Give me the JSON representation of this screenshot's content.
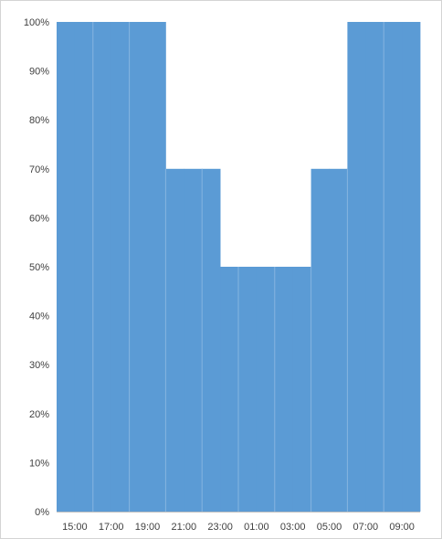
{
  "chart_data": {
    "type": "bar",
    "title": "",
    "xlabel": "",
    "ylabel": "",
    "ylim": [
      0,
      100
    ],
    "y_ticks": [
      "0%",
      "10%",
      "20%",
      "30%",
      "40%",
      "50%",
      "60%",
      "70%",
      "80%",
      "90%",
      "100%"
    ],
    "x_tick_labels": [
      "15:00",
      "17:00",
      "19:00",
      "21:00",
      "23:00",
      "01:00",
      "03:00",
      "05:00",
      "07:00",
      "09:00"
    ],
    "categories": [
      "15:00",
      "16:00",
      "17:00",
      "18:00",
      "19:00",
      "20:00",
      "21:00",
      "22:00",
      "23:00",
      "00:00",
      "01:00",
      "02:00",
      "03:00",
      "04:00",
      "05:00",
      "06:00",
      "07:00",
      "08:00",
      "09:00",
      "10:00"
    ],
    "values": [
      100,
      100,
      100,
      100,
      100,
      100,
      70,
      70,
      70,
      50,
      50,
      50,
      50,
      50,
      70,
      70,
      100,
      100,
      100,
      100
    ],
    "bar_color": "#5b9bd5",
    "grid": false,
    "legend": "none"
  }
}
